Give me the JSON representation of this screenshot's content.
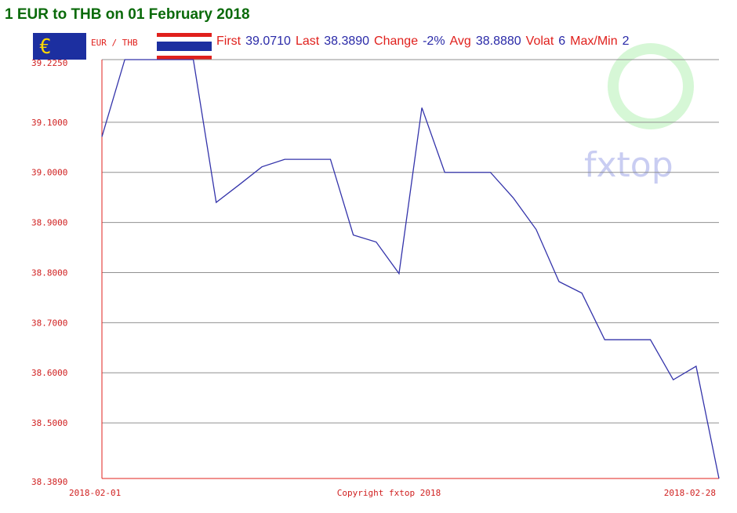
{
  "chart_data": {
    "type": "line",
    "title": "1 EUR to THB on 01 February 2018",
    "pair": "EUR / THB",
    "stats": [
      {
        "label": "First",
        "value": "39.0710"
      },
      {
        "label": "Last",
        "value": "38.3890"
      },
      {
        "label": "Change",
        "value": "-2%"
      },
      {
        "label": "Avg",
        "value": "38.8880"
      },
      {
        "label": "Volat",
        "value": "6"
      },
      {
        "label": "Max/Min",
        "value": "2"
      }
    ],
    "copyright": "Copyright fxtop 2018",
    "watermark": "fxtop",
    "categories": [
      "2018-02-01",
      null,
      null,
      null,
      null,
      null,
      null,
      null,
      null,
      null,
      null,
      null,
      null,
      null,
      null,
      null,
      null,
      null,
      null,
      null,
      null,
      null,
      null,
      null,
      null,
      null,
      null,
      "2018-02-28"
    ],
    "series": [
      {
        "name": "EUR/THB",
        "color": "#3333aa",
        "values": [
          39.071,
          39.225,
          39.225,
          39.225,
          39.225,
          38.94,
          38.975,
          39.011,
          39.026,
          39.026,
          39.026,
          38.875,
          38.861,
          38.798,
          39.129,
          39.0,
          39.0,
          39.0,
          38.949,
          38.886,
          38.782,
          38.759,
          38.666,
          38.666,
          38.666,
          38.586,
          38.613,
          38.389
        ]
      }
    ],
    "ylim": [
      38.389,
      39.225
    ],
    "yticks": [
      {
        "value": 38.389,
        "label": "38.3890"
      },
      {
        "value": 38.5,
        "label": "38.5000"
      },
      {
        "value": 38.6,
        "label": "38.6000"
      },
      {
        "value": 38.7,
        "label": "38.7000"
      },
      {
        "value": 38.8,
        "label": "38.8000"
      },
      {
        "value": 38.9,
        "label": "38.9000"
      },
      {
        "value": 39.0,
        "label": "39.0000"
      },
      {
        "value": 39.1,
        "label": "39.1000"
      },
      {
        "value": 39.225,
        "label": "39.2250"
      }
    ],
    "grid": true
  }
}
